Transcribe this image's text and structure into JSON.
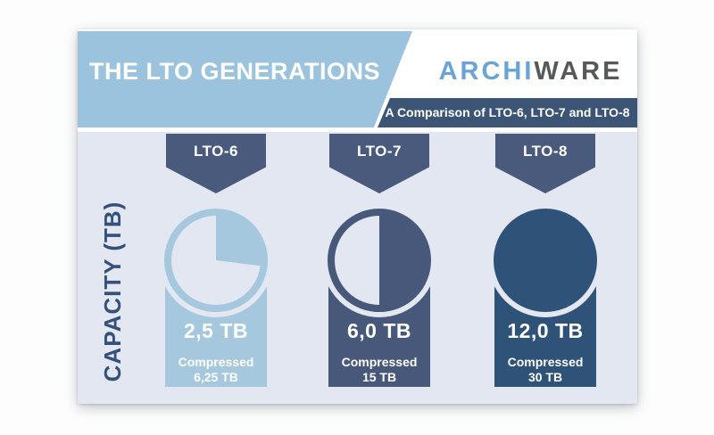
{
  "header": {
    "title": "THE LTO GENERATIONS",
    "logo_part1": "ARCHI",
    "logo_part2": "WARE",
    "subtitle": "A Comparison of LTO-6, LTO-7 and LTO-8"
  },
  "axis_label": "CAPACITY (TB)",
  "columns": [
    {
      "label": "LTO-6",
      "value": "2,5 TB",
      "compressed_label": "Compressed",
      "compressed_value": "6,25 TB"
    },
    {
      "label": "LTO-7",
      "value": "6,0 TB",
      "compressed_label": "Compressed",
      "compressed_value": "15 TB"
    },
    {
      "label": "LTO-8",
      "value": "12,0 TB",
      "compressed_label": "Compressed",
      "compressed_value": "30 TB"
    }
  ],
  "colors": {
    "header_band": "#9cc3dd",
    "subtitle_band": "#3c5577",
    "banner": "#4a5a7d",
    "content_bg": "#e3e7f2",
    "axis_text": "#33517b",
    "logo_archi": "#69a3d9",
    "logo_ware": "#57585a",
    "lto6": "#a5c8de",
    "lto7": "#47587a",
    "lto8": "#2e5278"
  },
  "chart_data": {
    "type": "pie",
    "title": "THE LTO GENERATIONS",
    "subtitle": "A Comparison of LTO-6, LTO-7 and LTO-8",
    "axis_label": "CAPACITY (TB)",
    "categories": [
      "LTO-6",
      "LTO-7",
      "LTO-8"
    ],
    "series": [
      {
        "name": "Capacity (TB)",
        "values": [
          2.5,
          6.0,
          12.0
        ]
      },
      {
        "name": "Compressed (TB)",
        "values": [
          6.25,
          15,
          30
        ]
      }
    ],
    "pie_fill_fraction": [
      0.27,
      0.5,
      1.0
    ],
    "legend_position": "none",
    "grid": false
  }
}
